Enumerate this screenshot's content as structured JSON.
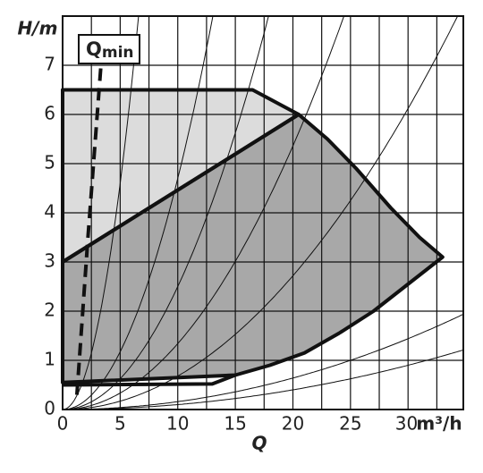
{
  "chart_data": {
    "type": "line",
    "y_label": "H/m",
    "x_label": "Q",
    "x_unit": "m³/h",
    "xlim": [
      0,
      34.8
    ],
    "ylim": [
      0,
      8
    ],
    "xticks": [
      0,
      5,
      10,
      15,
      20,
      25,
      30
    ],
    "yticks": [
      0,
      1,
      2,
      3,
      4,
      5,
      6,
      7
    ],
    "xgrid": [
      2.5,
      5,
      7.5,
      10,
      12.5,
      15,
      17.5,
      20,
      22.5,
      25,
      27.5,
      30,
      32.5
    ],
    "grid": true,
    "areas": [
      {
        "color": "#dcdcdc",
        "x": [
          0,
          16.5,
          20.5,
          0
        ],
        "y": [
          6.5,
          6.5,
          6,
          3
        ]
      },
      {
        "color": "#a8a8a8",
        "x": [
          0,
          20.5,
          23,
          25.5,
          28.5,
          31,
          33,
          30,
          27,
          24,
          21,
          18,
          15,
          0
        ],
        "y": [
          3,
          6,
          5.5,
          4.9,
          4.1,
          3.5,
          3.1,
          2.55,
          2.0,
          1.55,
          1.15,
          0.9,
          0.7,
          0.55
        ]
      }
    ],
    "lines": [
      {
        "x": [
          0,
          13,
          15
        ],
        "y": [
          0.5,
          0.52,
          0.7
        ]
      }
    ],
    "system_curves": [
      0.184,
      0.047,
      0.025,
      0.0134,
      0.0068,
      0.0016,
      0.001
    ],
    "qmin": {
      "label": "Q",
      "sub": "min",
      "x": [
        1.24,
        2.2,
        3.33
      ],
      "y": [
        0.3,
        3.5,
        7
      ]
    }
  }
}
